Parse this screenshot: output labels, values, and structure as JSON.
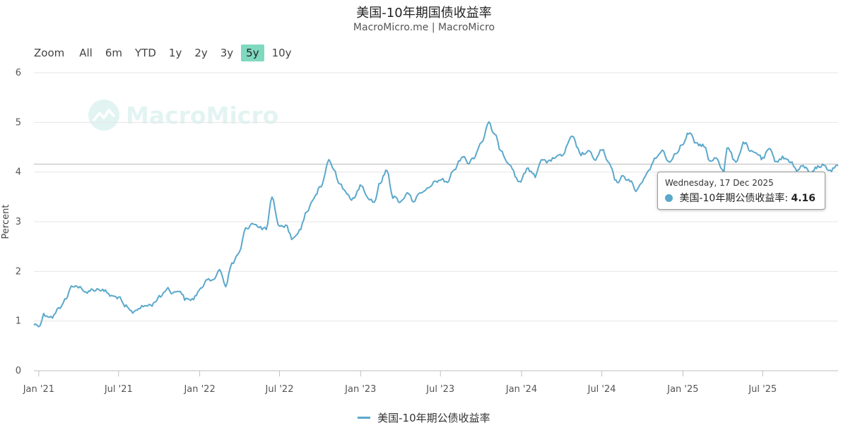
{
  "zoom": {
    "label": "Zoom",
    "buttons": [
      "All",
      "6m",
      "YTD",
      "1y",
      "2y",
      "3y",
      "5y",
      "10y"
    ],
    "active": "5y"
  },
  "watermark": "MacroMicro",
  "tooltip": {
    "date": "Wednesday, 17 Dec 2025",
    "series_label": "美国-10年期公债收益率:",
    "value": "4.16"
  },
  "colors": {
    "series": "#5ba8cb",
    "active_button": "#7fd9bf"
  },
  "chart_data": {
    "type": "line",
    "title": "美国-10年期国债收益率",
    "subtitle": "MacroMicro.me | MacroMicro",
    "ylabel": "Percent",
    "xlabel": "",
    "ylim": [
      0,
      6
    ],
    "yticks": [
      "0",
      "1",
      "2",
      "3",
      "4",
      "5",
      "6"
    ],
    "xticks": [
      "Jan '21",
      "Jul '21",
      "Jan '22",
      "Jul '22",
      "Jan '23",
      "Jul '23",
      "Jan '24",
      "Jul '24",
      "Jan '25",
      "Jul '25"
    ],
    "x_range": [
      "2020-12-21",
      "2025-12-19"
    ],
    "crosshair_value": 4.16,
    "legend_position": "bottom-center",
    "grid": true,
    "series": [
      {
        "name": "美国-10年期公债收益率",
        "x": [
          "2020-12-21",
          "2021-01-04",
          "2021-01-12",
          "2021-02-01",
          "2021-02-15",
          "2021-03-01",
          "2021-03-19",
          "2021-04-01",
          "2021-04-15",
          "2021-05-03",
          "2021-05-17",
          "2021-06-01",
          "2021-06-15",
          "2021-07-01",
          "2021-07-15",
          "2021-08-02",
          "2021-08-16",
          "2021-09-01",
          "2021-09-15",
          "2021-10-01",
          "2021-10-21",
          "2021-11-01",
          "2021-11-15",
          "2021-12-01",
          "2021-12-15",
          "2022-01-03",
          "2022-01-18",
          "2022-02-01",
          "2022-02-15",
          "2022-03-01",
          "2022-03-15",
          "2022-04-01",
          "2022-04-15",
          "2022-05-02",
          "2022-05-16",
          "2022-06-01",
          "2022-06-14",
          "2022-07-01",
          "2022-07-15",
          "2022-08-01",
          "2022-08-15",
          "2022-09-01",
          "2022-09-15",
          "2022-10-03",
          "2022-10-21",
          "2022-11-01",
          "2022-11-15",
          "2022-12-01",
          "2022-12-15",
          "2023-01-03",
          "2023-01-18",
          "2023-02-01",
          "2023-02-15",
          "2023-03-02",
          "2023-03-15",
          "2023-04-03",
          "2023-04-17",
          "2023-05-01",
          "2023-05-15",
          "2023-06-01",
          "2023-06-15",
          "2023-07-03",
          "2023-07-17",
          "2023-08-01",
          "2023-08-21",
          "2023-09-01",
          "2023-09-15",
          "2023-10-02",
          "2023-10-19",
          "2023-11-01",
          "2023-11-15",
          "2023-12-01",
          "2023-12-27",
          "2024-01-16",
          "2024-02-01",
          "2024-02-15",
          "2024-03-01",
          "2024-03-15",
          "2024-04-01",
          "2024-04-25",
          "2024-05-15",
          "2024-06-03",
          "2024-06-17",
          "2024-07-01",
          "2024-07-15",
          "2024-08-05",
          "2024-08-15",
          "2024-09-03",
          "2024-09-16",
          "2024-10-01",
          "2024-10-15",
          "2024-11-01",
          "2024-11-15",
          "2024-12-02",
          "2024-12-16",
          "2025-01-02",
          "2025-01-14",
          "2025-02-03",
          "2025-02-18",
          "2025-03-03",
          "2025-03-17",
          "2025-04-04",
          "2025-04-11",
          "2025-05-01",
          "2025-05-21",
          "2025-06-02",
          "2025-06-16",
          "2025-07-01",
          "2025-07-15",
          "2025-08-01",
          "2025-08-15",
          "2025-09-02",
          "2025-09-16",
          "2025-10-01",
          "2025-10-16",
          "2025-11-03",
          "2025-11-17",
          "2025-12-01",
          "2025-12-17",
          "2025-12-19"
        ],
        "y": [
          0.93,
          0.92,
          1.13,
          1.08,
          1.25,
          1.42,
          1.72,
          1.69,
          1.58,
          1.63,
          1.64,
          1.6,
          1.5,
          1.48,
          1.3,
          1.18,
          1.26,
          1.31,
          1.33,
          1.48,
          1.66,
          1.56,
          1.62,
          1.43,
          1.44,
          1.63,
          1.87,
          1.8,
          2.05,
          1.72,
          2.15,
          2.38,
          2.85,
          2.98,
          2.88,
          2.85,
          3.47,
          2.9,
          2.92,
          2.65,
          2.82,
          3.2,
          3.45,
          3.7,
          4.24,
          4.05,
          3.77,
          3.55,
          3.45,
          3.75,
          3.48,
          3.4,
          3.8,
          4.05,
          3.5,
          3.4,
          3.6,
          3.42,
          3.55,
          3.65,
          3.78,
          3.85,
          3.8,
          4.05,
          4.33,
          4.18,
          4.3,
          4.6,
          4.98,
          4.75,
          4.45,
          4.2,
          3.81,
          4.06,
          3.92,
          4.27,
          4.19,
          4.3,
          4.33,
          4.7,
          4.36,
          4.4,
          4.25,
          4.46,
          4.2,
          3.79,
          3.9,
          3.84,
          3.62,
          3.8,
          4.05,
          4.28,
          4.44,
          4.19,
          4.4,
          4.57,
          4.79,
          4.55,
          4.54,
          4.2,
          4.3,
          4.01,
          4.49,
          4.22,
          4.6,
          4.41,
          4.39,
          4.26,
          4.46,
          4.22,
          4.29,
          4.22,
          4.03,
          4.12,
          4.0,
          4.1,
          4.14,
          4.02,
          4.16,
          4.14
        ]
      }
    ]
  }
}
